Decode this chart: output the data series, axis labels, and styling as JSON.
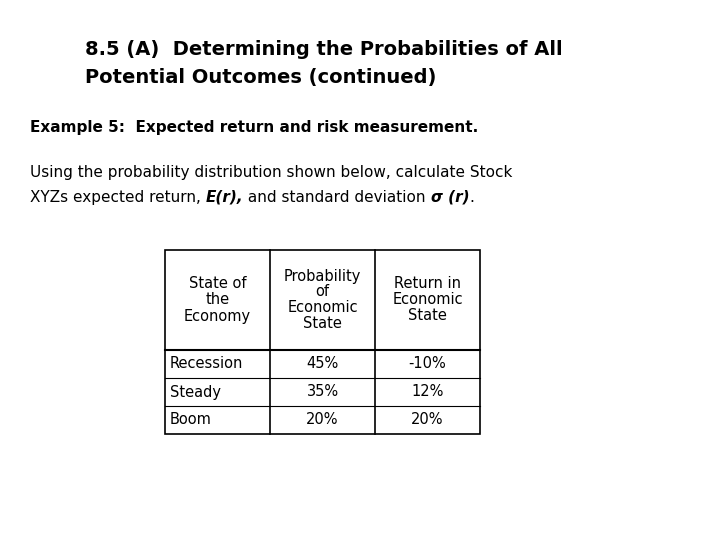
{
  "title_line1": "8.5 (A)  Determining the Probabilities of All",
  "title_line2": "Potential Outcomes (continued)",
  "example_text": "Example 5:  Expected return and risk measurement.",
  "body_line1": "Using the probability distribution shown below, calculate Stock",
  "body_line2_pre": "XYZs expected return, ",
  "body_line2_italic1": "E(r),",
  "body_line2_mid": " and standard deviation ",
  "body_line2_italic2": "σ (r)",
  "body_line2_end": ".",
  "table_col_headers": [
    "State of\nthe\nEconomy",
    "Probability\nof\nEconomic\nState",
    "Return in\nEconomic\nState"
  ],
  "table_rows": [
    [
      "Recession",
      "45%",
      "-10%"
    ],
    [
      "Steady",
      "35%",
      "12%"
    ],
    [
      "Boom",
      "20%",
      "20%"
    ]
  ],
  "bg_color": "#ffffff",
  "text_color": "#000000",
  "title_fontsize": 14,
  "example_fontsize": 11,
  "body_fontsize": 11,
  "table_fontsize": 10.5
}
